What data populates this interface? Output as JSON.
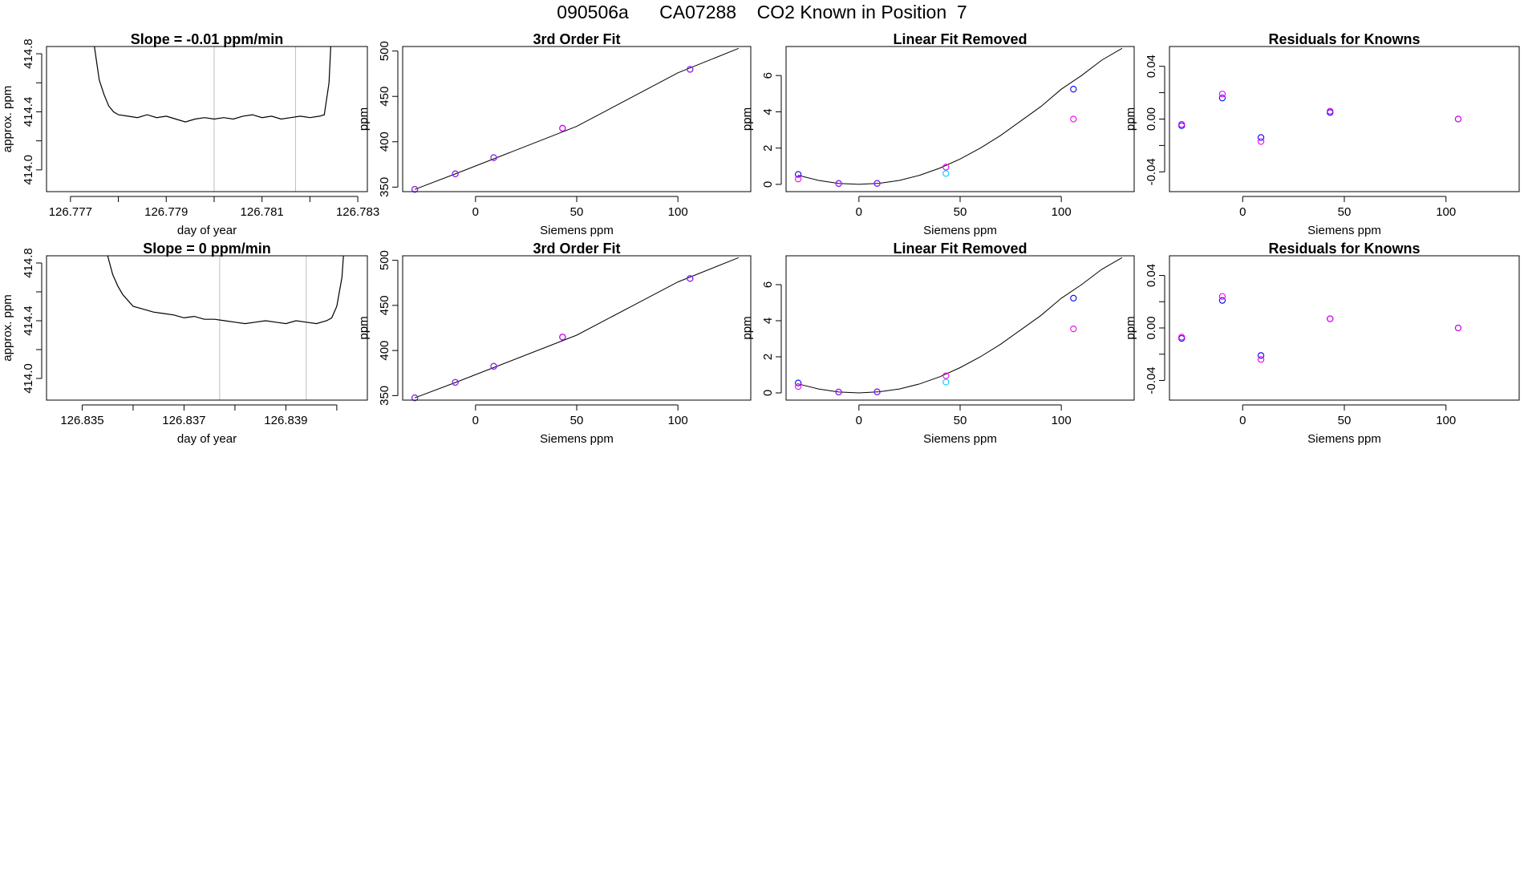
{
  "title": "090506a      CA07288    CO2 Known in Position  7",
  "colors": {
    "axis": "#000000",
    "line": "#000000",
    "vline": "#bebebe",
    "blue": "#0000ff",
    "purple": "#a020f0",
    "magenta": "#ee00ee",
    "cyan": "#00c8ff"
  },
  "chart_data": [
    {
      "type": "line",
      "title": "Slope =  -0.01  ppm/min",
      "xlabel": "day of year",
      "ylabel": "approx. ppm",
      "xlim": [
        126.7765,
        126.7832
      ],
      "ylim": [
        413.85,
        414.85
      ],
      "xticks": [
        126.777,
        126.778,
        126.779,
        126.78,
        126.781,
        126.782,
        126.783
      ],
      "xtick_labels": [
        "126.777",
        "",
        "126.779",
        "",
        "126.781",
        "",
        "126.783"
      ],
      "yticks": [
        414.0,
        414.2,
        414.4,
        414.6,
        414.8
      ],
      "ytick_labels": [
        "414.0",
        "",
        "414.4",
        "",
        "414.8"
      ],
      "vlines": [
        126.78,
        126.7817
      ],
      "series": [
        {
          "points": [
            [
              126.7774,
              415.3
            ],
            [
              126.7775,
              414.85
            ],
            [
              126.7776,
              414.62
            ],
            [
              126.7777,
              414.52
            ],
            [
              126.7778,
              414.44
            ],
            [
              126.7779,
              414.4
            ],
            [
              126.778,
              414.38
            ],
            [
              126.7782,
              414.37
            ],
            [
              126.7784,
              414.36
            ],
            [
              126.7786,
              414.38
            ],
            [
              126.7788,
              414.36
            ],
            [
              126.779,
              414.37
            ],
            [
              126.7792,
              414.35
            ],
            [
              126.7794,
              414.33
            ],
            [
              126.7796,
              414.35
            ],
            [
              126.7798,
              414.36
            ],
            [
              126.78,
              414.35
            ],
            [
              126.7802,
              414.36
            ],
            [
              126.7804,
              414.35
            ],
            [
              126.7806,
              414.37
            ],
            [
              126.7808,
              414.38
            ],
            [
              126.781,
              414.36
            ],
            [
              126.7812,
              414.37
            ],
            [
              126.7814,
              414.35
            ],
            [
              126.7816,
              414.36
            ],
            [
              126.7818,
              414.37
            ],
            [
              126.782,
              414.36
            ],
            [
              126.7822,
              414.37
            ],
            [
              126.7823,
              414.38
            ],
            [
              126.7824,
              414.6
            ],
            [
              126.7825,
              415.3
            ]
          ]
        }
      ]
    },
    {
      "type": "scatter",
      "title": "3rd Order Fit",
      "xlabel": "Siemens ppm",
      "ylabel": "ppm",
      "xlim": [
        -36,
        136
      ],
      "ylim": [
        345,
        505
      ],
      "xticks": [
        0,
        50,
        100
      ],
      "xtick_labels": [
        "0",
        "50",
        "100"
      ],
      "yticks": [
        350,
        400,
        450,
        500
      ],
      "ytick_labels": [
        "350",
        "400",
        "450",
        "500"
      ],
      "curve": [
        [
          -30,
          347.5
        ],
        [
          -10,
          364.5
        ],
        [
          10,
          382
        ],
        [
          50,
          417
        ],
        [
          100,
          476
        ],
        [
          130,
          503
        ]
      ],
      "series": [
        {
          "color": "blue",
          "x": [
            -30,
            -10,
            9,
            43,
            106
          ],
          "y": [
            347.5,
            364.6,
            382.4,
            414.8,
            479.8
          ]
        },
        {
          "color": "purple",
          "x": [
            -30,
            -10,
            9,
            106
          ],
          "y": [
            347.6,
            364.7,
            382.5,
            479.9
          ]
        },
        {
          "color": "magenta",
          "x": [
            43
          ],
          "y": [
            415.0
          ]
        }
      ]
    },
    {
      "type": "scatter",
      "title": "Linear Fit Removed",
      "xlabel": "Siemens ppm",
      "ylabel": "ppm",
      "xlim": [
        -36,
        136
      ],
      "ylim": [
        -0.4,
        7.6
      ],
      "xticks": [
        0,
        50,
        100
      ],
      "xtick_labels": [
        "0",
        "50",
        "100"
      ],
      "yticks": [
        0,
        2,
        4,
        6
      ],
      "ytick_labels": [
        "0",
        "2",
        "4",
        "6"
      ],
      "curve": [
        [
          -30,
          0.5
        ],
        [
          -20,
          0.22
        ],
        [
          -10,
          0.05
        ],
        [
          0,
          0
        ],
        [
          10,
          0.06
        ],
        [
          20,
          0.22
        ],
        [
          30,
          0.5
        ],
        [
          40,
          0.9
        ],
        [
          50,
          1.4
        ],
        [
          60,
          2.0
        ],
        [
          70,
          2.7
        ],
        [
          80,
          3.5
        ],
        [
          90,
          4.3
        ],
        [
          100,
          5.25
        ],
        [
          110,
          6.0
        ],
        [
          120,
          6.85
        ],
        [
          130,
          7.5
        ]
      ],
      "series": [
        {
          "color": "blue",
          "x": [
            -30,
            -10,
            9,
            106
          ],
          "y": [
            0.55,
            0.05,
            0.05,
            5.25
          ]
        },
        {
          "color": "magenta",
          "x": [
            -30,
            43,
            106
          ],
          "y": [
            0.3,
            0.95,
            3.6
          ]
        },
        {
          "color": "cyan",
          "x": [
            43
          ],
          "y": [
            0.6
          ]
        },
        {
          "color": "purple",
          "x": [
            -10,
            9
          ],
          "y": [
            0.04,
            0.06
          ]
        }
      ]
    },
    {
      "type": "scatter",
      "title": "Residuals for Knowns",
      "xlabel": "Siemens ppm",
      "ylabel": "ppm",
      "xlim": [
        -36,
        136
      ],
      "ylim": [
        -0.055,
        0.055
      ],
      "xticks": [
        0,
        50,
        100
      ],
      "xtick_labels": [
        "0",
        "50",
        "100"
      ],
      "yticks": [
        -0.04,
        -0.02,
        0.0,
        0.02,
        0.04
      ],
      "ytick_labels": [
        "-0.04",
        "",
        "0.00",
        "",
        "0.04"
      ],
      "series": [
        {
          "color": "blue",
          "x": [
            -30,
            -10,
            9,
            43,
            106
          ],
          "y": [
            -0.005,
            0.016,
            -0.014,
            0.005,
            0.0
          ]
        },
        {
          "color": "magenta",
          "x": [
            -30,
            -10,
            9,
            43,
            106
          ],
          "y": [
            -0.004,
            0.019,
            -0.017,
            0.006,
            0.0
          ]
        }
      ]
    },
    {
      "type": "line",
      "title": "Slope =  0  ppm/min",
      "xlabel": "day of year",
      "ylabel": "approx. ppm",
      "xlim": [
        126.8343,
        126.8406
      ],
      "ylim": [
        413.85,
        414.85
      ],
      "xticks": [
        126.835,
        126.836,
        126.837,
        126.838,
        126.839,
        126.84
      ],
      "xtick_labels": [
        "126.835",
        "",
        "126.837",
        "",
        "126.839",
        ""
      ],
      "yticks": [
        414.0,
        414.2,
        414.4,
        414.6,
        414.8
      ],
      "ytick_labels": [
        "414.0",
        "",
        "414.4",
        "",
        "414.8"
      ],
      "vlines": [
        126.8377,
        126.8394
      ],
      "series": [
        {
          "points": [
            [
              126.8354,
              415.2
            ],
            [
              126.8355,
              414.85
            ],
            [
              126.8356,
              414.72
            ],
            [
              126.8357,
              414.64
            ],
            [
              126.8358,
              414.58
            ],
            [
              126.8359,
              414.54
            ],
            [
              126.836,
              414.5
            ],
            [
              126.8362,
              414.48
            ],
            [
              126.8364,
              414.46
            ],
            [
              126.8366,
              414.45
            ],
            [
              126.8368,
              414.44
            ],
            [
              126.837,
              414.42
            ],
            [
              126.8372,
              414.43
            ],
            [
              126.8374,
              414.41
            ],
            [
              126.8376,
              414.41
            ],
            [
              126.8378,
              414.4
            ],
            [
              126.838,
              414.39
            ],
            [
              126.8382,
              414.38
            ],
            [
              126.8384,
              414.39
            ],
            [
              126.8386,
              414.4
            ],
            [
              126.8388,
              414.39
            ],
            [
              126.839,
              414.38
            ],
            [
              126.8392,
              414.4
            ],
            [
              126.8394,
              414.39
            ],
            [
              126.8396,
              414.38
            ],
            [
              126.8398,
              414.4
            ],
            [
              126.8399,
              414.42
            ],
            [
              126.84,
              414.5
            ],
            [
              126.8401,
              414.7
            ],
            [
              126.8402,
              415.2
            ]
          ]
        }
      ]
    },
    {
      "type": "scatter",
      "title": "3rd Order Fit",
      "xlabel": "Siemens ppm",
      "ylabel": "ppm",
      "xlim": [
        -36,
        136
      ],
      "ylim": [
        345,
        505
      ],
      "xticks": [
        0,
        50,
        100
      ],
      "xtick_labels": [
        "0",
        "50",
        "100"
      ],
      "yticks": [
        350,
        400,
        450,
        500
      ],
      "ytick_labels": [
        "350",
        "400",
        "450",
        "500"
      ],
      "curve": [
        [
          -30,
          347.5
        ],
        [
          -10,
          364.5
        ],
        [
          10,
          382
        ],
        [
          50,
          417
        ],
        [
          100,
          476
        ],
        [
          130,
          503
        ]
      ],
      "series": [
        {
          "color": "blue",
          "x": [
            -30,
            -10,
            9,
            43,
            106
          ],
          "y": [
            347.5,
            364.6,
            382.4,
            414.8,
            479.8
          ]
        },
        {
          "color": "purple",
          "x": [
            -30,
            -10,
            9,
            106
          ],
          "y": [
            347.6,
            364.7,
            382.5,
            479.9
          ]
        },
        {
          "color": "magenta",
          "x": [
            43
          ],
          "y": [
            415.0
          ]
        }
      ]
    },
    {
      "type": "scatter",
      "title": "Linear Fit Removed",
      "xlabel": "Siemens ppm",
      "ylabel": "ppm",
      "xlim": [
        -36,
        136
      ],
      "ylim": [
        -0.4,
        7.6
      ],
      "xticks": [
        0,
        50,
        100
      ],
      "xtick_labels": [
        "0",
        "50",
        "100"
      ],
      "yticks": [
        0,
        2,
        4,
        6
      ],
      "ytick_labels": [
        "0",
        "2",
        "4",
        "6"
      ],
      "curve": [
        [
          -30,
          0.5
        ],
        [
          -20,
          0.22
        ],
        [
          -10,
          0.05
        ],
        [
          0,
          0
        ],
        [
          10,
          0.06
        ],
        [
          20,
          0.22
        ],
        [
          30,
          0.5
        ],
        [
          40,
          0.9
        ],
        [
          50,
          1.4
        ],
        [
          60,
          2.0
        ],
        [
          70,
          2.7
        ],
        [
          80,
          3.5
        ],
        [
          90,
          4.3
        ],
        [
          100,
          5.25
        ],
        [
          110,
          6.0
        ],
        [
          120,
          6.85
        ],
        [
          130,
          7.5
        ]
      ],
      "series": [
        {
          "color": "blue",
          "x": [
            -30,
            -10,
            9,
            106
          ],
          "y": [
            0.55,
            0.05,
            0.05,
            5.25
          ]
        },
        {
          "color": "magenta",
          "x": [
            -30,
            43,
            106
          ],
          "y": [
            0.35,
            0.95,
            3.55
          ]
        },
        {
          "color": "cyan",
          "x": [
            43
          ],
          "y": [
            0.6
          ]
        },
        {
          "color": "purple",
          "x": [
            -10,
            9
          ],
          "y": [
            0.04,
            0.06
          ]
        }
      ]
    },
    {
      "type": "scatter",
      "title": "Residuals for Knowns",
      "xlabel": "Siemens ppm",
      "ylabel": "ppm",
      "xlim": [
        -36,
        136
      ],
      "ylim": [
        -0.055,
        0.055
      ],
      "xticks": [
        0,
        50,
        100
      ],
      "xtick_labels": [
        "0",
        "50",
        "100"
      ],
      "yticks": [
        -0.04,
        -0.02,
        0.0,
        0.02,
        0.04
      ],
      "ytick_labels": [
        "-0.04",
        "",
        "0.00",
        "",
        "0.04"
      ],
      "series": [
        {
          "color": "blue",
          "x": [
            -30,
            -10,
            9,
            43,
            106
          ],
          "y": [
            -0.008,
            0.021,
            -0.021,
            0.007,
            0.0
          ]
        },
        {
          "color": "magenta",
          "x": [
            -30,
            -10,
            9,
            43,
            106
          ],
          "y": [
            -0.007,
            0.024,
            -0.024,
            0.007,
            0.0
          ]
        }
      ]
    }
  ]
}
